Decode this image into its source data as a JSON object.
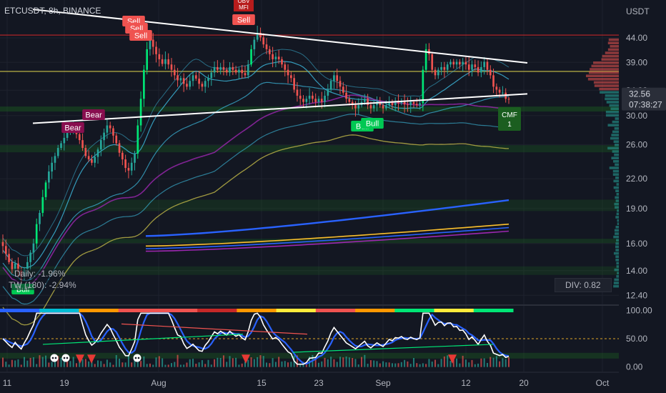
{
  "header": {
    "symbol": "ETCUSDT",
    "sep1": ", ",
    "interval": "8h",
    "sep2": ", ",
    "exchange": "BINANCE"
  },
  "info": {
    "daily": "Daily: -1.96%",
    "tw": "TW (180): -2.94%",
    "div": "DIV: 0.82"
  },
  "colors": {
    "background": "#131722",
    "grid": "#1e222d",
    "up": "#26a69a",
    "up_bright": "#00e676",
    "down": "#ef5350",
    "trendline": "#ffffff",
    "resistance": "#c62828",
    "support_band": "#1b5e20",
    "olive": "#b8b045",
    "cyan": "#3bb3d6",
    "blue": "#2962ff",
    "purple": "#9c27b0",
    "yellow": "#fbc02d",
    "price_tag": "#ef5350"
  },
  "chart_data": [
    {
      "type": "candlestick",
      "symbol": "ETCUSDT",
      "interval": "8h",
      "exchange": "BINANCE",
      "currency_label": "USDT",
      "y_scale": "log",
      "ylim": [
        11.9,
        53
      ],
      "y_ticks": [
        44,
        39,
        34,
        30,
        26,
        22,
        19,
        16,
        14,
        12.4
      ],
      "y_tick_labels": [
        "44.00",
        "39.00",
        "34.00",
        "30.00",
        "26.00",
        "22.00",
        "19.00",
        "16.00",
        "14.00",
        "12.40"
      ],
      "x_ticks": [
        "11",
        "19",
        "Aug",
        "15",
        "23",
        "Sep",
        "12",
        "20",
        "Oct"
      ],
      "closes": [
        15.8,
        15.2,
        14.6,
        14.1,
        14.5,
        14.0,
        13.6,
        14.1,
        14.6,
        15.3,
        16.0,
        17.6,
        18.6,
        20.1,
        21.6,
        22.8,
        23.8,
        24.6,
        25.6,
        26.2,
        26.9,
        27.6,
        28.1,
        28.6,
        27.4,
        26.6,
        25.6,
        24.6,
        24.2,
        23.8,
        24.5,
        25.4,
        26.6,
        27.6,
        28.6,
        28.2,
        27.2,
        26.2,
        25.0,
        24.2,
        23.2,
        22.9,
        23.8,
        24.9,
        28.6,
        32.6,
        37.6,
        41.6,
        43.6,
        42.1,
        40.6,
        39.6,
        38.7,
        39.6,
        38.6,
        37.6,
        36.6,
        35.7,
        36.1,
        35.1,
        34.6,
        35.6,
        36.6,
        36.0,
        35.1,
        34.6,
        35.6,
        36.1,
        37.1,
        38.1,
        37.6,
        38.1,
        37.6,
        37.1,
        38.1,
        37.6,
        37.1,
        37.6,
        37.0,
        36.6,
        38.6,
        41.6,
        43.6,
        45.1,
        44.1,
        42.6,
        41.6,
        40.6,
        39.6,
        40.1,
        39.6,
        38.6,
        37.6,
        36.6,
        36.1,
        34.1,
        33.1,
        32.6,
        32.1,
        32.6,
        33.1,
        32.6,
        32.1,
        32.6,
        32.1,
        33.1,
        34.1,
        35.6,
        36.6,
        35.6,
        34.6,
        33.6,
        32.6,
        32.1,
        31.6,
        31.1,
        31.6,
        32.1,
        32.6,
        31.6,
        31.1,
        31.6,
        32.1,
        31.6,
        31.1,
        31.6,
        32.1,
        31.6,
        32.1,
        31.9,
        32.2,
        31.7,
        31.6,
        32.1,
        31.8,
        31.6,
        31.9,
        37.6,
        41.6,
        40.6,
        37.6,
        36.6,
        37.6,
        38.1,
        37.6,
        38.6,
        39.1,
        38.6,
        39.1,
        38.6,
        39.1,
        38.6,
        37.6,
        38.6,
        38.1,
        37.1,
        38.1,
        39.1,
        37.6,
        36.6,
        34.6,
        34.1,
        33.6,
        33.6,
        32.6,
        32.56
      ],
      "last_price": "32.56",
      "countdown": "07:38:27",
      "signal_labels": [
        "Sell",
        "Sell",
        "Sell",
        "Sell",
        "Bear",
        "Bear",
        "Bull",
        "Bull",
        "Bull"
      ],
      "cmf_label": "CMF",
      "cmf_value": "1",
      "obv_label": "OBV",
      "mfi_label": "MFI"
    },
    {
      "type": "line",
      "name": "oscillator",
      "ylim": [
        -8,
        108
      ],
      "y_ticks": [
        100,
        50,
        0
      ],
      "y_tick_labels": [
        "100.00",
        "50.00",
        "0.00"
      ]
    }
  ]
}
